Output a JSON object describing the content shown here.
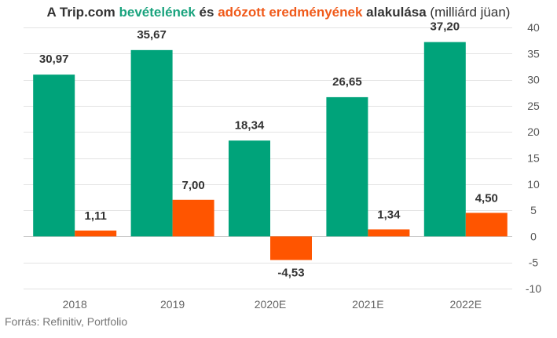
{
  "title": {
    "part1": "A Trip.com ",
    "part2": "bevételének",
    "part3": " és ",
    "part4": "adózott eredményének",
    "part5": " alakulása",
    "part6": " (milliárd jüan)"
  },
  "source": "Forrás: Refinitiv, Portfolio",
  "colors": {
    "revenue": "#00a37a",
    "profit": "#ff5500"
  },
  "chart_data": {
    "type": "bar",
    "categories": [
      "2018",
      "2019",
      "2020E",
      "2021E",
      "2022E"
    ],
    "series": [
      {
        "values": [
          30.97,
          35.67,
          18.34,
          26.65,
          37.2
        ],
        "labels": [
          "30,97",
          "35,67",
          "18,34",
          "26,65",
          "37,20"
        ]
      },
      {
        "values": [
          1.11,
          7.0,
          -4.53,
          1.34,
          4.5
        ],
        "labels": [
          "1,11",
          "7,00",
          "-4,53",
          "1,34",
          "4,50"
        ]
      }
    ],
    "ylim": [
      -10,
      40
    ],
    "yticks": [
      40,
      35,
      30,
      25,
      20,
      15,
      10,
      5,
      0,
      -5,
      -10
    ],
    "ytick_labels": [
      "40",
      "35",
      "30",
      "25",
      "20",
      "15",
      "10",
      "5",
      "0",
      "-5",
      "-10"
    ],
    "yaxis_position": "right",
    "grid": true,
    "legend": "none"
  }
}
